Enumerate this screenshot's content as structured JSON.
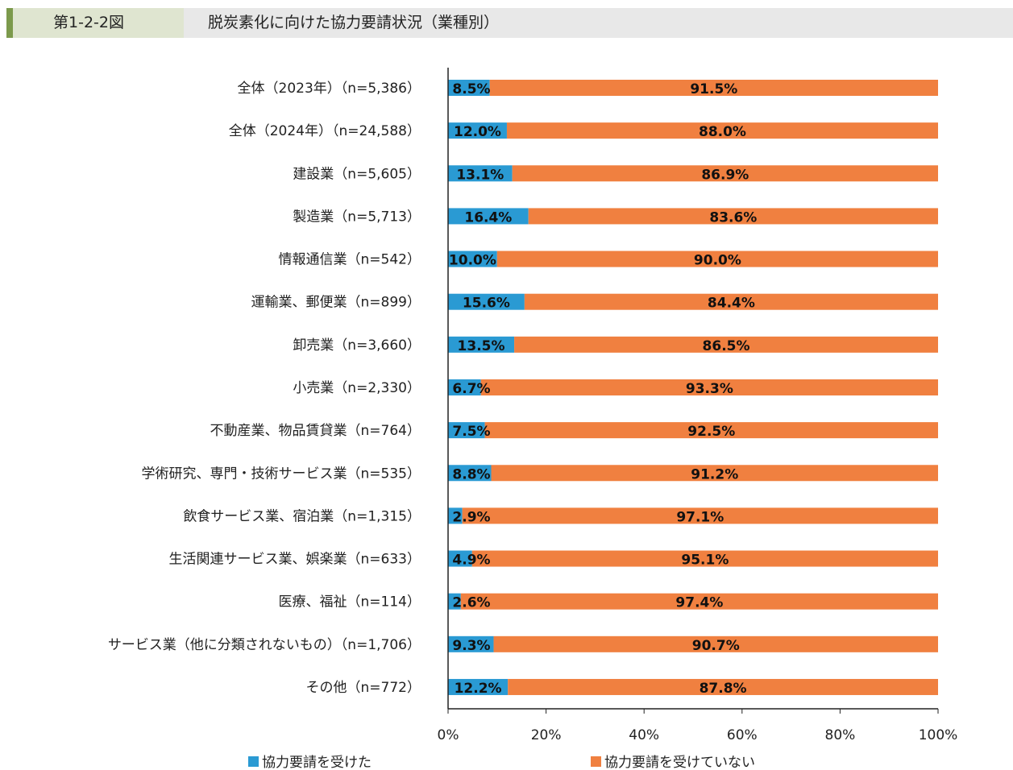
{
  "header": {
    "figure_number": "第1-2-2図",
    "title": "脱炭素化に向けた協力要請状況（業種別）"
  },
  "chart_data": {
    "type": "bar",
    "orientation": "horizontal",
    "stacked": true,
    "categories": [
      "全体（2023年）（n=5,386）",
      "全体（2024年）（n=24,588）",
      "建設業（n=5,605）",
      "製造業（n=5,713）",
      "情報通信業（n=542）",
      "運輸業、郵便業（n=899）",
      "卸売業（n=3,660）",
      "小売業（n=2,330）",
      "不動産業、物品賃貸業（n=764）",
      "学術研究、専門・技術サービス業（n=535）",
      "飲食サービス業、宿泊業（n=1,315）",
      "生活関連サービス業、娯楽業（n=633）",
      "医療、福祉（n=114）",
      "サービス業（他に分類されないもの）（n=1,706）",
      "その他（n=772）"
    ],
    "series": [
      {
        "name": "協力要請を受けた",
        "color": "#2a9ad3",
        "values": [
          8.5,
          12.0,
          13.1,
          16.4,
          10.0,
          15.6,
          13.5,
          6.7,
          7.5,
          8.8,
          2.9,
          4.9,
          2.6,
          9.3,
          12.2
        ]
      },
      {
        "name": "協力要請を受けていない",
        "color": "#f08040",
        "values": [
          91.5,
          88.0,
          86.9,
          83.6,
          90.0,
          84.4,
          86.5,
          93.3,
          92.5,
          91.2,
          97.1,
          95.1,
          97.4,
          90.7,
          87.8
        ]
      }
    ],
    "xlim": [
      0,
      100
    ],
    "xticks": [
      "0%",
      "20%",
      "40%",
      "60%",
      "80%",
      "100%"
    ],
    "data_label_format": "{v}%",
    "legend_position": "bottom",
    "grid": false
  }
}
